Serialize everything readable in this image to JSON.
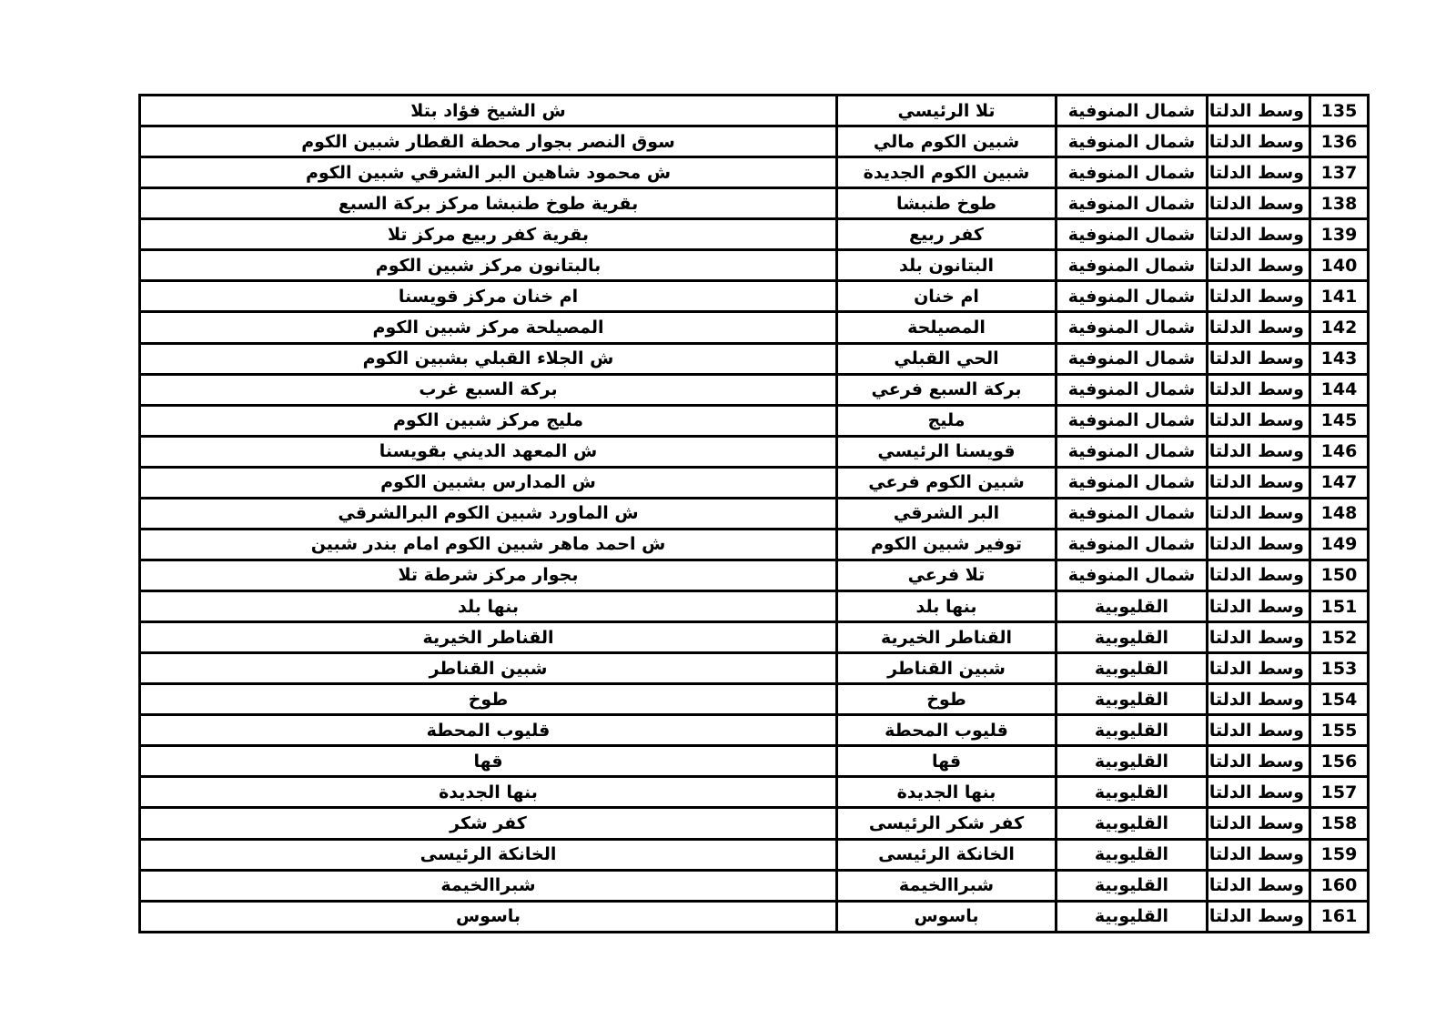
{
  "document": {
    "background_color": "#ffffff",
    "text_color": "#000000",
    "border_color": "#000000"
  },
  "table": {
    "columns": [
      {
        "key": "num",
        "name": "serial-number"
      },
      {
        "key": "region",
        "name": "region"
      },
      {
        "key": "governorate",
        "name": "governorate"
      },
      {
        "key": "branch",
        "name": "branch-name"
      },
      {
        "key": "address",
        "name": "address"
      }
    ],
    "rows": [
      {
        "num": "135",
        "region": "وسط الدلتا",
        "governorate": "شمال المنوفية",
        "branch": "تلا الرئيسي",
        "address": "ش الشيخ فؤاد بتلا"
      },
      {
        "num": "136",
        "region": "وسط الدلتا",
        "governorate": "شمال المنوفية",
        "branch": "شبين الكوم مالي",
        "address": "سوق النصر بجوار محطة القطار شبين الكوم"
      },
      {
        "num": "137",
        "region": "وسط الدلتا",
        "governorate": "شمال المنوفية",
        "branch": "شبين الكوم الجديدة",
        "address": "ش محمود شاهين البر الشرقي شبين الكوم"
      },
      {
        "num": "138",
        "region": "وسط الدلتا",
        "governorate": "شمال المنوفية",
        "branch": "طوخ طنبشا",
        "address": "بقرية طوخ طنبشا مركز بركة السبع"
      },
      {
        "num": "139",
        "region": "وسط الدلتا",
        "governorate": "شمال المنوفية",
        "branch": "كفر ربيع",
        "address": "بقرية كفر ربيع مركز تلا"
      },
      {
        "num": "140",
        "region": "وسط الدلتا",
        "governorate": "شمال المنوفية",
        "branch": "البتانون بلد",
        "address": "بالبتانون مركز شبين الكوم"
      },
      {
        "num": "141",
        "region": "وسط الدلتا",
        "governorate": "شمال المنوفية",
        "branch": "ام خنان",
        "address": "ام خنان مركز قويسنا"
      },
      {
        "num": "142",
        "region": "وسط الدلتا",
        "governorate": "شمال المنوفية",
        "branch": "المصيلحة",
        "address": "المصيلحة مركز شبين الكوم"
      },
      {
        "num": "143",
        "region": "وسط الدلتا",
        "governorate": "شمال المنوفية",
        "branch": "الحي القبلي",
        "address": "ش الجلاء القبلي بشبين الكوم"
      },
      {
        "num": "144",
        "region": "وسط الدلتا",
        "governorate": "شمال المنوفية",
        "branch": "بركة السبع فرعي",
        "address": "بركة السبع غرب"
      },
      {
        "num": "145",
        "region": "وسط الدلتا",
        "governorate": "شمال المنوفية",
        "branch": "مليج",
        "address": "مليج مركز شبين الكوم"
      },
      {
        "num": "146",
        "region": "وسط الدلتا",
        "governorate": "شمال المنوفية",
        "branch": "قويسنا الرئيسي",
        "address": "ش المعهد الديني بقويسنا"
      },
      {
        "num": "147",
        "region": "وسط الدلتا",
        "governorate": "شمال المنوفية",
        "branch": "شبين الكوم فرعي",
        "address": "ش المدارس بشبين الكوم"
      },
      {
        "num": "148",
        "region": "وسط الدلتا",
        "governorate": "شمال المنوفية",
        "branch": "البر الشرقي",
        "address": "ش الماورد شبين الكوم البرالشرقي"
      },
      {
        "num": "149",
        "region": "وسط الدلتا",
        "governorate": "شمال المنوفية",
        "branch": "توفير شبين الكوم",
        "address": "ش احمد ماهر شبين الكوم امام بندر شبين"
      },
      {
        "num": "150",
        "region": "وسط الدلتا",
        "governorate": "شمال المنوفية",
        "branch": "تلا فرعي",
        "address": "بجوار مركز شرطة تلا"
      },
      {
        "num": "151",
        "region": "وسط الدلتا",
        "governorate": "القليوبية",
        "branch": "بنها بلد",
        "address": "بنها بلد"
      },
      {
        "num": "152",
        "region": "وسط الدلتا",
        "governorate": "القليوبية",
        "branch": "القناطر الخيرية",
        "address": "القناطر الخيرية"
      },
      {
        "num": "153",
        "region": "وسط الدلتا",
        "governorate": "القليوبية",
        "branch": "شبين القناطر",
        "address": "شبين القناطر"
      },
      {
        "num": "154",
        "region": "وسط الدلتا",
        "governorate": "القليوبية",
        "branch": "طوخ",
        "address": "طوخ"
      },
      {
        "num": "155",
        "region": "وسط الدلتا",
        "governorate": "القليوبية",
        "branch": "قليوب المحطة",
        "address": "قليوب المحطة"
      },
      {
        "num": "156",
        "region": "وسط الدلتا",
        "governorate": "القليوبية",
        "branch": "قها",
        "address": "قها"
      },
      {
        "num": "157",
        "region": "وسط الدلتا",
        "governorate": "القليوبية",
        "branch": "بنها الجديدة",
        "address": "بنها الجديدة"
      },
      {
        "num": "158",
        "region": "وسط الدلتا",
        "governorate": "القليوبية",
        "branch": "كفر شكر الرئيسى",
        "address": "كفر شكر"
      },
      {
        "num": "159",
        "region": "وسط الدلتا",
        "governorate": "القليوبية",
        "branch": "الخانكة الرئيسى",
        "address": "الخانكة الرئيسى"
      },
      {
        "num": "160",
        "region": "وسط الدلتا",
        "governorate": "القليوبية",
        "branch": "شبراالخيمة",
        "address": "شبراالخيمة"
      },
      {
        "num": "161",
        "region": "وسط الدلتا",
        "governorate": "القليوبية",
        "branch": "باسوس",
        "address": "باسوس"
      }
    ]
  }
}
